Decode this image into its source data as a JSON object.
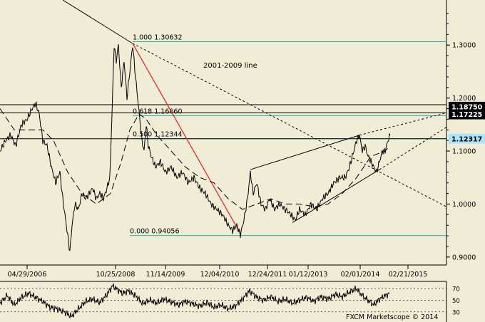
{
  "chart_data": {
    "type": "line",
    "title": "",
    "xlabel": "",
    "ylabel": "",
    "x_tick_labels": [
      "04/29/2006",
      "10/25/2008",
      "11/14/2009",
      "12/04/2010",
      "12/24/2011",
      "01/12/2013",
      "02/01/2014",
      "02/21/2015"
    ],
    "y_tick_labels": [
      "1.3000",
      "1.2000",
      "1.1000",
      "1.0000",
      "0.9000"
    ],
    "ylim": [
      0.885,
      1.385
    ],
    "fib_levels": [
      {
        "label": "1.000 1.30632",
        "value": 1.30632
      },
      {
        "label": "0.618 1.16660",
        "value": 1.1666
      },
      {
        "label": "0.500 1.12344",
        "value": 1.12344
      },
      {
        "label": "0.000 0.94056",
        "value": 0.94056
      }
    ],
    "horizontal_levels": [
      {
        "label": "1.18750",
        "value": 1.1875
      },
      {
        "label": "1.17225",
        "value": 1.17225
      }
    ],
    "last_price_label": "1.12317",
    "last_price": 1.12317,
    "annotations": [
      "2001-2009 line"
    ],
    "price_series": [
      {
        "x": 0,
        "y": 1.1
      },
      {
        "x": 8,
        "y": 1.12
      },
      {
        "x": 15,
        "y": 1.13
      },
      {
        "x": 22,
        "y": 1.11
      },
      {
        "x": 30,
        "y": 1.15
      },
      {
        "x": 38,
        "y": 1.16
      },
      {
        "x": 45,
        "y": 1.18
      },
      {
        "x": 50,
        "y": 1.19
      },
      {
        "x": 55,
        "y": 1.17
      },
      {
        "x": 60,
        "y": 1.12
      },
      {
        "x": 66,
        "y": 1.11
      },
      {
        "x": 72,
        "y": 1.07
      },
      {
        "x": 78,
        "y": 1.04
      },
      {
        "x": 84,
        "y": 1.06
      },
      {
        "x": 88,
        "y": 1.01
      },
      {
        "x": 92,
        "y": 0.97
      },
      {
        "x": 95,
        "y": 0.94
      },
      {
        "x": 98,
        "y": 0.91
      },
      {
        "x": 101,
        "y": 0.96
      },
      {
        "x": 105,
        "y": 1.0
      },
      {
        "x": 110,
        "y": 0.99
      },
      {
        "x": 115,
        "y": 1.02
      },
      {
        "x": 120,
        "y": 1.01
      },
      {
        "x": 125,
        "y": 1.02
      },
      {
        "x": 130,
        "y": 1.03
      },
      {
        "x": 135,
        "y": 1.01
      },
      {
        "x": 140,
        "y": 1.02
      },
      {
        "x": 145,
        "y": 1.01
      },
      {
        "x": 150,
        "y": 1.03
      },
      {
        "x": 154,
        "y": 1.05
      },
      {
        "x": 157,
        "y": 1.17
      },
      {
        "x": 160,
        "y": 1.3
      },
      {
        "x": 163,
        "y": 1.27
      },
      {
        "x": 166,
        "y": 1.3
      },
      {
        "x": 170,
        "y": 1.22
      },
      {
        "x": 174,
        "y": 1.27
      },
      {
        "x": 178,
        "y": 1.2
      },
      {
        "x": 182,
        "y": 1.25
      },
      {
        "x": 186,
        "y": 1.3
      },
      {
        "x": 190,
        "y": 1.24
      },
      {
        "x": 193,
        "y": 1.2
      },
      {
        "x": 196,
        "y": 1.16
      },
      {
        "x": 199,
        "y": 1.12
      },
      {
        "x": 202,
        "y": 1.1
      },
      {
        "x": 205,
        "y": 1.15
      },
      {
        "x": 208,
        "y": 1.11
      },
      {
        "x": 212,
        "y": 1.09
      },
      {
        "x": 218,
        "y": 1.07
      },
      {
        "x": 225,
        "y": 1.08
      },
      {
        "x": 232,
        "y": 1.06
      },
      {
        "x": 240,
        "y": 1.07
      },
      {
        "x": 248,
        "y": 1.05
      },
      {
        "x": 256,
        "y": 1.06
      },
      {
        "x": 264,
        "y": 1.04
      },
      {
        "x": 272,
        "y": 1.05
      },
      {
        "x": 280,
        "y": 1.03
      },
      {
        "x": 288,
        "y": 1.02
      },
      {
        "x": 296,
        "y": 1.0
      },
      {
        "x": 304,
        "y": 0.99
      },
      {
        "x": 312,
        "y": 0.98
      },
      {
        "x": 320,
        "y": 0.96
      },
      {
        "x": 326,
        "y": 0.95
      },
      {
        "x": 332,
        "y": 0.96
      },
      {
        "x": 337,
        "y": 0.942
      },
      {
        "x": 342,
        "y": 0.97
      },
      {
        "x": 347,
        "y": 1.01
      },
      {
        "x": 351,
        "y": 1.06
      },
      {
        "x": 355,
        "y": 1.02
      },
      {
        "x": 360,
        "y": 1.04
      },
      {
        "x": 366,
        "y": 1.0
      },
      {
        "x": 372,
        "y": 0.99
      },
      {
        "x": 378,
        "y": 1.01
      },
      {
        "x": 385,
        "y": 0.99
      },
      {
        "x": 392,
        "y": 1.0
      },
      {
        "x": 400,
        "y": 0.99
      },
      {
        "x": 408,
        "y": 0.98
      },
      {
        "x": 414,
        "y": 0.97
      },
      {
        "x": 420,
        "y": 0.99
      },
      {
        "x": 428,
        "y": 0.98
      },
      {
        "x": 436,
        "y": 1.0
      },
      {
        "x": 444,
        "y": 0.99
      },
      {
        "x": 452,
        "y": 1.01
      },
      {
        "x": 460,
        "y": 1.02
      },
      {
        "x": 468,
        "y": 1.04
      },
      {
        "x": 476,
        "y": 1.05
      },
      {
        "x": 484,
        "y": 1.05
      },
      {
        "x": 490,
        "y": 1.07
      },
      {
        "x": 496,
        "y": 1.1
      },
      {
        "x": 500,
        "y": 1.12
      },
      {
        "x": 504,
        "y": 1.13
      },
      {
        "x": 508,
        "y": 1.1
      },
      {
        "x": 512,
        "y": 1.11
      },
      {
        "x": 516,
        "y": 1.09
      },
      {
        "x": 520,
        "y": 1.08
      },
      {
        "x": 524,
        "y": 1.07
      },
      {
        "x": 528,
        "y": 1.06
      },
      {
        "x": 532,
        "y": 1.08
      },
      {
        "x": 536,
        "y": 1.1
      },
      {
        "x": 540,
        "y": 1.1
      },
      {
        "x": 544,
        "y": 1.12
      },
      {
        "x": 547,
        "y": 1.13
      }
    ],
    "ma_series": [
      {
        "x": 0,
        "y": 1.18
      },
      {
        "x": 20,
        "y": 1.14
      },
      {
        "x": 40,
        "y": 1.14
      },
      {
        "x": 60,
        "y": 1.14
      },
      {
        "x": 75,
        "y": 1.12
      },
      {
        "x": 95,
        "y": 1.06
      },
      {
        "x": 115,
        "y": 1.02
      },
      {
        "x": 135,
        "y": 1.0
      },
      {
        "x": 155,
        "y": 1.02
      },
      {
        "x": 170,
        "y": 1.08
      },
      {
        "x": 182,
        "y": 1.14
      },
      {
        "x": 195,
        "y": 1.17
      },
      {
        "x": 205,
        "y": 1.16
      },
      {
        "x": 220,
        "y": 1.13
      },
      {
        "x": 240,
        "y": 1.1
      },
      {
        "x": 260,
        "y": 1.07
      },
      {
        "x": 280,
        "y": 1.05
      },
      {
        "x": 300,
        "y": 1.04
      },
      {
        "x": 320,
        "y": 1.01
      },
      {
        "x": 340,
        "y": 0.99
      },
      {
        "x": 360,
        "y": 1.0
      },
      {
        "x": 380,
        "y": 1.01
      },
      {
        "x": 400,
        "y": 1.0
      },
      {
        "x": 420,
        "y": 1.0
      },
      {
        "x": 440,
        "y": 0.995
      },
      {
        "x": 460,
        "y": 1.0
      },
      {
        "x": 480,
        "y": 1.02
      },
      {
        "x": 500,
        "y": 1.05
      },
      {
        "x": 520,
        "y": 1.09
      },
      {
        "x": 540,
        "y": 1.1
      },
      {
        "x": 547,
        "y": 1.11
      }
    ],
    "oscillator": {
      "tick_labels": [
        "70",
        "50",
        "30"
      ],
      "series": [
        {
          "x": 0,
          "y": 45
        },
        {
          "x": 10,
          "y": 58
        },
        {
          "x": 20,
          "y": 42
        },
        {
          "x": 30,
          "y": 55
        },
        {
          "x": 40,
          "y": 62
        },
        {
          "x": 50,
          "y": 55
        },
        {
          "x": 60,
          "y": 48
        },
        {
          "x": 70,
          "y": 38
        },
        {
          "x": 80,
          "y": 35
        },
        {
          "x": 90,
          "y": 30
        },
        {
          "x": 100,
          "y": 22
        },
        {
          "x": 110,
          "y": 35
        },
        {
          "x": 120,
          "y": 48
        },
        {
          "x": 130,
          "y": 52
        },
        {
          "x": 140,
          "y": 46
        },
        {
          "x": 150,
          "y": 60
        },
        {
          "x": 158,
          "y": 75
        },
        {
          "x": 165,
          "y": 68
        },
        {
          "x": 172,
          "y": 62
        },
        {
          "x": 180,
          "y": 66
        },
        {
          "x": 190,
          "y": 58
        },
        {
          "x": 200,
          "y": 44
        },
        {
          "x": 210,
          "y": 50
        },
        {
          "x": 220,
          "y": 45
        },
        {
          "x": 230,
          "y": 52
        },
        {
          "x": 240,
          "y": 47
        },
        {
          "x": 250,
          "y": 42
        },
        {
          "x": 260,
          "y": 48
        },
        {
          "x": 270,
          "y": 44
        },
        {
          "x": 280,
          "y": 40
        },
        {
          "x": 290,
          "y": 46
        },
        {
          "x": 300,
          "y": 38
        },
        {
          "x": 310,
          "y": 42
        },
        {
          "x": 320,
          "y": 35
        },
        {
          "x": 330,
          "y": 40
        },
        {
          "x": 340,
          "y": 52
        },
        {
          "x": 350,
          "y": 66
        },
        {
          "x": 360,
          "y": 55
        },
        {
          "x": 370,
          "y": 50
        },
        {
          "x": 380,
          "y": 56
        },
        {
          "x": 390,
          "y": 48
        },
        {
          "x": 400,
          "y": 52
        },
        {
          "x": 410,
          "y": 45
        },
        {
          "x": 420,
          "y": 50
        },
        {
          "x": 430,
          "y": 55
        },
        {
          "x": 440,
          "y": 48
        },
        {
          "x": 450,
          "y": 56
        },
        {
          "x": 460,
          "y": 52
        },
        {
          "x": 470,
          "y": 60
        },
        {
          "x": 480,
          "y": 56
        },
        {
          "x": 490,
          "y": 64
        },
        {
          "x": 500,
          "y": 70
        },
        {
          "x": 508,
          "y": 58
        },
        {
          "x": 516,
          "y": 50
        },
        {
          "x": 524,
          "y": 42
        },
        {
          "x": 532,
          "y": 52
        },
        {
          "x": 540,
          "y": 58
        },
        {
          "x": 547,
          "y": 62
        }
      ]
    }
  },
  "footer": {
    "credit": "FXCM Marketscope © 2014"
  }
}
